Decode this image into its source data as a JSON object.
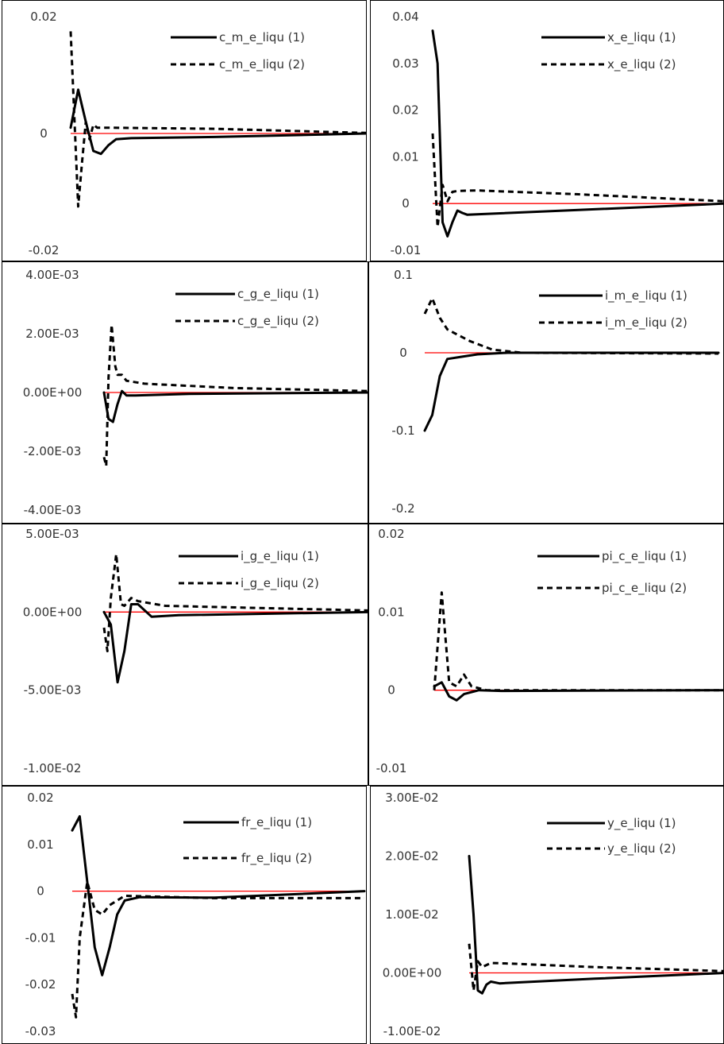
{
  "figure": {
    "zero_line_color": "#ff0000",
    "series_color": "#000000"
  },
  "chart_data": [
    {
      "type": "line",
      "ylim": [
        -0.02,
        0.02
      ],
      "ticks": [
        {
          "v": 0.02,
          "label": "0.02"
        },
        {
          "v": 0,
          "label": "0"
        },
        {
          "v": -0.02,
          "label": "-0.02"
        }
      ],
      "grid": false,
      "legend_position": "top-right",
      "series": [
        {
          "name": "c_m_e_liqu (1)",
          "style": "solid",
          "points": [
            [
              1,
              0.001
            ],
            [
              2,
              0.0075
            ],
            [
              3,
              0.002
            ],
            [
              4,
              -0.003
            ],
            [
              5,
              -0.0035
            ],
            [
              6,
              -0.002
            ],
            [
              7,
              -0.001
            ],
            [
              9,
              -0.0008
            ],
            [
              20,
              -0.0006
            ],
            [
              40,
              0
            ]
          ]
        },
        {
          "name": "c_m_e_liqu (2)",
          "style": "dashed",
          "points": [
            [
              1,
              0.0175
            ],
            [
              2,
              -0.0125
            ],
            [
              2.5,
              -0.005
            ],
            [
              3,
              0.002
            ],
            [
              3.5,
              -0.001
            ],
            [
              4,
              0.0015
            ],
            [
              4.5,
              0.001
            ],
            [
              6,
              0.001
            ],
            [
              20,
              0.0008
            ],
            [
              40,
              0.0001
            ]
          ]
        }
      ]
    },
    {
      "type": "line",
      "ylim": [
        -0.01,
        0.04
      ],
      "ticks": [
        {
          "v": 0.04,
          "label": "0.04"
        },
        {
          "v": 0.03,
          "label": "0.03"
        },
        {
          "v": 0.02,
          "label": "0.02"
        },
        {
          "v": 0.01,
          "label": "0.01"
        },
        {
          "v": 0,
          "label": "0"
        },
        {
          "v": -0.01,
          "label": "-0.01"
        }
      ],
      "grid": false,
      "legend_position": "top-right",
      "series": [
        {
          "name": "x_e_liqu (1)",
          "style": "solid",
          "points": [
            [
              1,
              0.037
            ],
            [
              2,
              0.03
            ],
            [
              3,
              -0.004
            ],
            [
              4,
              -0.007
            ],
            [
              5,
              -0.004
            ],
            [
              6,
              -0.0015
            ],
            [
              7,
              -0.002
            ],
            [
              8,
              -0.0024
            ],
            [
              30,
              -0.0014
            ],
            [
              60,
              0
            ]
          ]
        },
        {
          "name": "x_e_liqu (2)",
          "style": "dashed",
          "points": [
            [
              1,
              0.015
            ],
            [
              2,
              -0.005
            ],
            [
              3,
              0.004
            ],
            [
              4,
              0.0005
            ],
            [
              5,
              0.0025
            ],
            [
              6,
              0.0027
            ],
            [
              10,
              0.0028
            ],
            [
              30,
              0.002
            ],
            [
              60,
              0.0005
            ]
          ]
        }
      ]
    },
    {
      "type": "line",
      "ylim": [
        -0.004,
        0.004
      ],
      "ticks": [
        {
          "v": 0.004,
          "label": "4.00E-03"
        },
        {
          "v": 0.002,
          "label": "2.00E-03"
        },
        {
          "v": 0,
          "label": "0.00E+00"
        },
        {
          "v": -0.002,
          "label": "-2.00E-03"
        },
        {
          "v": -0.004,
          "label": "-4.00E-03"
        }
      ],
      "grid": false,
      "legend_position": "top-right",
      "series": [
        {
          "name": "c_g_e_liqu (1)",
          "style": "solid",
          "points": [
            [
              1,
              0
            ],
            [
              2,
              -0.0009
            ],
            [
              3,
              -0.001
            ],
            [
              4,
              -0.0004
            ],
            [
              5,
              5e-05
            ],
            [
              6,
              -0.0001
            ],
            [
              8,
              -0.0001
            ],
            [
              20,
              -5e-05
            ],
            [
              60,
              0
            ]
          ]
        },
        {
          "name": "c_g_e_liqu (2)",
          "style": "dashed",
          "points": [
            [
              1,
              -0.0022
            ],
            [
              1.5,
              -0.0025
            ],
            [
              2,
              0.0005
            ],
            [
              2.7,
              0.0023
            ],
            [
              3.5,
              0.0009
            ],
            [
              4,
              0.0006
            ],
            [
              5,
              0.0006
            ],
            [
              6,
              0.0004
            ],
            [
              10,
              0.0003
            ],
            [
              30,
              0.00015
            ],
            [
              60,
              5e-05
            ]
          ]
        }
      ]
    },
    {
      "type": "line",
      "ylim": [
        -0.2,
        0.1
      ],
      "ticks": [
        {
          "v": 0.1,
          "label": "0.1"
        },
        {
          "v": 0,
          "label": "0"
        },
        {
          "v": -0.1,
          "label": "-0.1"
        },
        {
          "v": -0.2,
          "label": "-0.2"
        }
      ],
      "grid": false,
      "legend_position": "top-right",
      "series": [
        {
          "name": "i_m_e_liqu (1)",
          "style": "solid",
          "points": [
            [
              1,
              -0.1
            ],
            [
              2,
              -0.08
            ],
            [
              3,
              -0.03
            ],
            [
              4,
              -0.008
            ],
            [
              6,
              -0.005
            ],
            [
              8,
              -0.002
            ],
            [
              12,
              0
            ],
            [
              40,
              0
            ]
          ]
        },
        {
          "name": "i_m_e_liqu (2)",
          "style": "dashed",
          "points": [
            [
              1,
              0.05
            ],
            [
              2,
              0.07
            ],
            [
              3,
              0.045
            ],
            [
              4,
              0.03
            ],
            [
              5,
              0.025
            ],
            [
              7,
              0.015
            ],
            [
              10,
              0.004
            ],
            [
              14,
              0
            ],
            [
              40,
              -0.001
            ]
          ]
        }
      ]
    },
    {
      "type": "line",
      "ylim": [
        -0.01,
        0.005
      ],
      "ticks": [
        {
          "v": 0.005,
          "label": "5.00E-03"
        },
        {
          "v": 0,
          "label": "0.00E+00"
        },
        {
          "v": -0.005,
          "label": "-5.00E-03"
        },
        {
          "v": -0.01,
          "label": "-1.00E-02"
        }
      ],
      "grid": false,
      "legend_position": "top-right",
      "series": [
        {
          "name": "i_g_e_liqu (1)",
          "style": "solid",
          "points": [
            [
              1,
              0
            ],
            [
              2,
              -0.0008
            ],
            [
              3,
              -0.0045
            ],
            [
              4,
              -0.0025
            ],
            [
              5,
              0.0005
            ],
            [
              6,
              0.0005
            ],
            [
              8,
              -0.0003
            ],
            [
              12,
              -0.0002
            ],
            [
              40,
              0
            ]
          ]
        },
        {
          "name": "i_g_e_liqu (2)",
          "style": "dashed",
          "points": [
            [
              1,
              -0.001
            ],
            [
              1.5,
              -0.0025
            ],
            [
              2,
              0.0009
            ],
            [
              2.8,
              0.0037
            ],
            [
              3.5,
              0.0005
            ],
            [
              4,
              0.0004
            ],
            [
              5,
              0.0009
            ],
            [
              6,
              0.0007
            ],
            [
              10,
              0.0004
            ],
            [
              40,
              0.0001
            ]
          ]
        }
      ]
    },
    {
      "type": "line",
      "ylim": [
        -0.01,
        0.02
      ],
      "ticks": [
        {
          "v": 0.02,
          "label": "0.02"
        },
        {
          "v": 0.01,
          "label": "0.01"
        },
        {
          "v": 0,
          "label": "0"
        },
        {
          "v": -0.01,
          "label": "-0.01"
        }
      ],
      "grid": false,
      "legend_position": "top-right",
      "series": [
        {
          "name": "pi_c_e_liqu (1)",
          "style": "solid",
          "points": [
            [
              1,
              0.0005
            ],
            [
              2,
              0.001
            ],
            [
              3,
              -0.0008
            ],
            [
              4,
              -0.0013
            ],
            [
              5,
              -0.0005
            ],
            [
              7,
              0
            ],
            [
              10,
              -0.0001
            ],
            [
              40,
              0
            ]
          ]
        },
        {
          "name": "pi_c_e_liqu (2)",
          "style": "dashed",
          "points": [
            [
              1,
              0
            ],
            [
              2,
              0.0125
            ],
            [
              3,
              0.001
            ],
            [
              4,
              0.0005
            ],
            [
              5,
              0.002
            ],
            [
              6,
              0.0005
            ],
            [
              8,
              0
            ],
            [
              40,
              0
            ]
          ]
        }
      ]
    },
    {
      "type": "line",
      "ylim": [
        -0.03,
        0.02
      ],
      "ticks": [
        {
          "v": 0.02,
          "label": "0.02"
        },
        {
          "v": 0.01,
          "label": "0.01"
        },
        {
          "v": 0,
          "label": "0"
        },
        {
          "v": -0.01,
          "label": "-0.01"
        },
        {
          "v": -0.02,
          "label": "-0.02"
        },
        {
          "v": -0.03,
          "label": "-0.03"
        }
      ],
      "grid": false,
      "legend_position": "top-right",
      "series": [
        {
          "name": "fr_e_liqu (1)",
          "style": "solid",
          "points": [
            [
              1,
              0.013
            ],
            [
              2,
              0.016
            ],
            [
              3,
              0.002
            ],
            [
              4,
              -0.012
            ],
            [
              5,
              -0.018
            ],
            [
              6,
              -0.012
            ],
            [
              7,
              -0.005
            ],
            [
              8,
              -0.002
            ],
            [
              10,
              -0.0013
            ],
            [
              20,
              -0.0014
            ],
            [
              40,
              0
            ]
          ]
        },
        {
          "name": "fr_e_liqu (2)",
          "style": "dashed",
          "points": [
            [
              1,
              -0.022
            ],
            [
              1.5,
              -0.027
            ],
            [
              2,
              -0.01
            ],
            [
              3,
              0.002
            ],
            [
              4,
              -0.004
            ],
            [
              5,
              -0.005
            ],
            [
              6,
              -0.003
            ],
            [
              8,
              -0.001
            ],
            [
              20,
              -0.0015
            ],
            [
              40,
              -0.0015
            ]
          ]
        }
      ]
    },
    {
      "type": "line",
      "ylim": [
        -0.01,
        0.03
      ],
      "ticks": [
        {
          "v": 0.03,
          "label": "3.00E-02"
        },
        {
          "v": 0.02,
          "label": "2.00E-02"
        },
        {
          "v": 0.01,
          "label": "1.00E-02"
        },
        {
          "v": 0,
          "label": "0.00E+00"
        },
        {
          "v": -0.01,
          "label": "-1.00E-02"
        }
      ],
      "grid": false,
      "legend_position": "top-right",
      "series": [
        {
          "name": "y_e_liqu (1)",
          "style": "solid",
          "points": [
            [
              1,
              0.02
            ],
            [
              2,
              0.01
            ],
            [
              3,
              -0.003
            ],
            [
              4,
              -0.0035
            ],
            [
              5,
              -0.002
            ],
            [
              6,
              -0.0015
            ],
            [
              8,
              -0.0018
            ],
            [
              30,
              -0.001
            ],
            [
              60,
              0
            ]
          ]
        },
        {
          "name": "y_e_liqu (2)",
          "style": "dashed",
          "points": [
            [
              1,
              0.005
            ],
            [
              2,
              -0.003
            ],
            [
              3,
              0.002
            ],
            [
              4,
              0.001
            ],
            [
              6,
              0.0017
            ],
            [
              10,
              0.0016
            ],
            [
              30,
              0.001
            ],
            [
              60,
              0.0003
            ]
          ]
        }
      ]
    }
  ]
}
